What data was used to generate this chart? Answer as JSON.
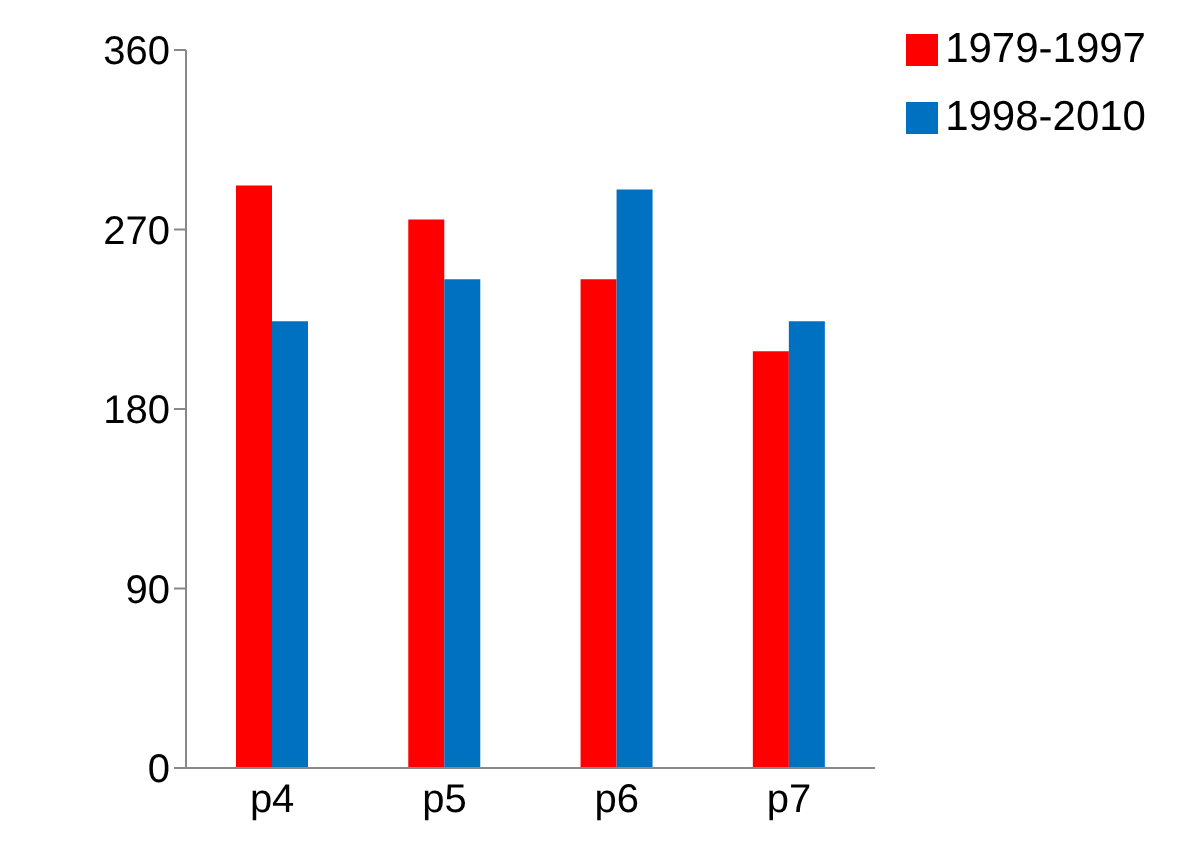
{
  "chart_data": {
    "type": "bar",
    "categories": [
      "p4",
      "p5",
      "p6",
      "p7"
    ],
    "series": [
      {
        "name": "1979-1997",
        "color": "#ff0000",
        "values": [
          292,
          275,
          245,
          209
        ]
      },
      {
        "name": "1998-2010",
        "color": "#0070c0",
        "values": [
          224,
          245,
          290,
          224
        ]
      }
    ],
    "ylim": [
      0,
      360
    ],
    "yticks": [
      0,
      90,
      180,
      270,
      360
    ],
    "grid": false,
    "legend": "top right"
  }
}
